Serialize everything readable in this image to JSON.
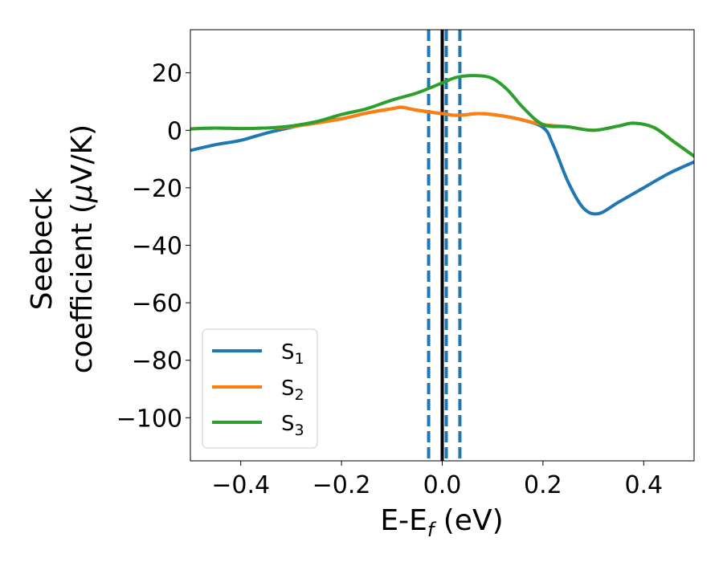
{
  "chart_data": {
    "type": "line",
    "xlabel": "E-E",
    "xlabel_sub": "f",
    "xlabel_unit": " (eV)",
    "ylabel_line1": "Seebeck",
    "ylabel_line2": "coefficient  (",
    "ylabel_mu": "μ",
    "ylabel_unit": "V/K)",
    "xlim": [
      -0.5,
      0.5
    ],
    "ylim": [
      -115,
      35
    ],
    "xticks": [
      -0.4,
      -0.2,
      0.0,
      0.2,
      0.4
    ],
    "xtick_labels": [
      "−0.4",
      "−0.2",
      "0.0",
      "0.2",
      "0.4"
    ],
    "yticks": [
      20,
      0,
      -20,
      -40,
      -60,
      -80,
      -100
    ],
    "ytick_labels": [
      "20",
      "0",
      "−20",
      "−40",
      "−60",
      "−80",
      "−100"
    ],
    "grid": false,
    "legend_position": "lower-left",
    "series": [
      {
        "name": "S",
        "subscript": "1",
        "color": "#1f77b4",
        "x": [
          -0.5,
          -0.45,
          -0.4,
          -0.35,
          -0.3,
          -0.25,
          -0.2,
          -0.15,
          -0.1,
          -0.08,
          -0.05,
          0.0,
          0.03,
          0.07,
          0.1,
          0.15,
          0.2,
          0.22,
          0.25,
          0.28,
          0.31,
          0.35,
          0.4,
          0.45,
          0.5
        ],
        "y": [
          -7,
          -5,
          -3.5,
          -1,
          1,
          3,
          4,
          6,
          7.5,
          8,
          7,
          5.8,
          5.2,
          5.8,
          5.5,
          4,
          1,
          -5,
          -18,
          -27,
          -29,
          -25,
          -20,
          -15,
          -11
        ]
      },
      {
        "name": "S",
        "subscript": "2",
        "color": "#ff7f0e",
        "x": [
          -0.5,
          -0.45,
          -0.4,
          -0.35,
          -0.3,
          -0.25,
          -0.2,
          -0.15,
          -0.1,
          -0.08,
          -0.05,
          0.0,
          0.03,
          0.07,
          0.1,
          0.15,
          0.2,
          0.25,
          0.3,
          0.35,
          0.38,
          0.42,
          0.46,
          0.5
        ],
        "y": [
          0.5,
          0.8,
          0.6,
          0.8,
          1.2,
          2.5,
          4,
          6,
          7.5,
          8,
          7,
          5.8,
          5.2,
          5.8,
          5.5,
          4,
          2,
          1.2,
          0,
          1.5,
          2.5,
          1,
          -4,
          -9
        ]
      },
      {
        "name": "S",
        "subscript": "3",
        "color": "#2ca02c",
        "x": [
          -0.5,
          -0.45,
          -0.4,
          -0.35,
          -0.3,
          -0.25,
          -0.2,
          -0.15,
          -0.1,
          -0.05,
          0.0,
          0.03,
          0.07,
          0.1,
          0.13,
          0.16,
          0.2,
          0.25,
          0.3,
          0.35,
          0.38,
          0.42,
          0.46,
          0.5
        ],
        "y": [
          0.5,
          0.8,
          0.6,
          0.8,
          1.5,
          3,
          5.5,
          7.5,
          10.5,
          13,
          16.5,
          18.5,
          19,
          18,
          14,
          8,
          2,
          1.2,
          0,
          1.5,
          2.5,
          1,
          -4,
          -9
        ]
      }
    ],
    "vlines": [
      {
        "x": 0.0,
        "color": "#000000",
        "style": "solid"
      },
      {
        "x": -0.027,
        "color": "#1f77b4",
        "style": "dashed"
      },
      {
        "x": 0.008,
        "color": "#1f77b4",
        "style": "dashed"
      },
      {
        "x": 0.035,
        "color": "#1f77b4",
        "style": "dashed"
      }
    ]
  }
}
